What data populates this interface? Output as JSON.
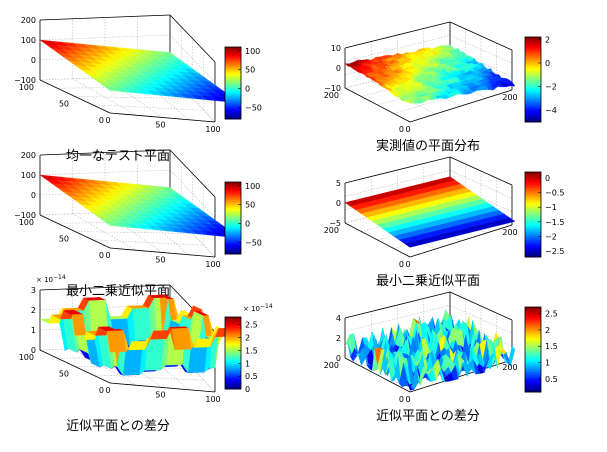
{
  "chart_data": [
    {
      "type": "surface",
      "title": "均一なテスト平面",
      "colormap": "jet",
      "grid": true,
      "z_axis": {
        "ticks": [
          "200",
          "100",
          "0",
          "−100"
        ],
        "range": [
          -100,
          200
        ]
      },
      "x_axis": {
        "ticks": [
          "0",
          "50",
          "100"
        ]
      },
      "y_axis": {
        "ticks": [
          "100",
          "50",
          "0"
        ]
      },
      "colorbar": {
        "ticks": [
          "100",
          "50",
          "0",
          "−50"
        ],
        "range": [
          -80,
          110
        ]
      },
      "surface": {
        "kind": "tilted-plane",
        "z_min": -75,
        "z_max": 100
      }
    },
    {
      "type": "surface",
      "title": "実測値の平面分布",
      "colormap": "jet",
      "grid": true,
      "z_axis": {
        "ticks": [
          "10",
          "0",
          "−10"
        ],
        "range": [
          -10,
          10
        ]
      },
      "x_axis": {
        "ticks": [
          "0",
          "200"
        ]
      },
      "y_axis": {
        "ticks": [
          "200",
          "0"
        ]
      },
      "colorbar": {
        "ticks": [
          "2",
          "0",
          "−2",
          "−4"
        ],
        "range": [
          -5,
          2.2
        ]
      },
      "surface": {
        "kind": "noisy-plane",
        "z_min": -4.5,
        "z_max": 2
      }
    },
    {
      "type": "surface",
      "title": "最小二乗近似平面",
      "colormap": "jet",
      "grid": true,
      "z_axis": {
        "ticks": [
          "200",
          "100",
          "0",
          "−100"
        ],
        "range": [
          -100,
          200
        ]
      },
      "x_axis": {
        "ticks": [
          "0",
          "50",
          "100"
        ]
      },
      "y_axis": {
        "ticks": [
          "100",
          "50",
          "0"
        ]
      },
      "colorbar": {
        "ticks": [
          "100",
          "50",
          "0",
          "−50"
        ],
        "range": [
          -80,
          110
        ]
      },
      "surface": {
        "kind": "tilted-plane",
        "z_min": -75,
        "z_max": 100
      }
    },
    {
      "type": "surface",
      "title": "最小二乗近似平面",
      "colormap": "jet",
      "grid": true,
      "z_axis": {
        "ticks": [
          "5",
          "0",
          "−5"
        ],
        "range": [
          -5,
          5
        ]
      },
      "x_axis": {
        "ticks": [
          "0",
          "200"
        ]
      },
      "y_axis": {
        "ticks": [
          "200",
          "0"
        ]
      },
      "colorbar": {
        "ticks": [
          "0",
          "−0.5",
          "−1",
          "−1.5",
          "−2",
          "−2.5"
        ],
        "range": [
          -2.7,
          0.2
        ]
      },
      "surface": {
        "kind": "tilted-plane",
        "z_min": -2.6,
        "z_max": 0.1
      }
    },
    {
      "type": "surface",
      "title": "近似平面との差分",
      "colormap": "jet",
      "grid": true,
      "z_axis": {
        "ticks": [
          "3",
          "2",
          "1",
          "0"
        ],
        "range": [
          0,
          3
        ],
        "exponent": "× 10",
        "exponent_power": "−14"
      },
      "x_axis": {
        "ticks": [
          "0",
          "50",
          "100"
        ]
      },
      "y_axis": {
        "ticks": [
          "100",
          "50",
          "0"
        ]
      },
      "colorbar": {
        "ticks": [
          "2.5",
          "2",
          "1.5",
          "1",
          "0.5",
          "0"
        ],
        "range": [
          0,
          2.8
        ],
        "exponent": "× 10",
        "exponent_power": "−14"
      },
      "surface": {
        "kind": "blocky-residual",
        "z_min": 0,
        "z_max": 2.8
      }
    },
    {
      "type": "surface",
      "title": "近似平面との差分",
      "colormap": "jet",
      "grid": true,
      "z_axis": {
        "ticks": [
          "4",
          "2",
          "0"
        ],
        "range": [
          0,
          4
        ]
      },
      "x_axis": {
        "ticks": [
          "0",
          "200"
        ]
      },
      "y_axis": {
        "ticks": [
          "200",
          "0"
        ]
      },
      "colorbar": {
        "ticks": [
          "2.5",
          "2",
          "1.5",
          "1",
          "0.5"
        ],
        "range": [
          0.1,
          2.7
        ]
      },
      "surface": {
        "kind": "rough-residual",
        "z_min": 0.1,
        "z_max": 2.7
      }
    }
  ]
}
